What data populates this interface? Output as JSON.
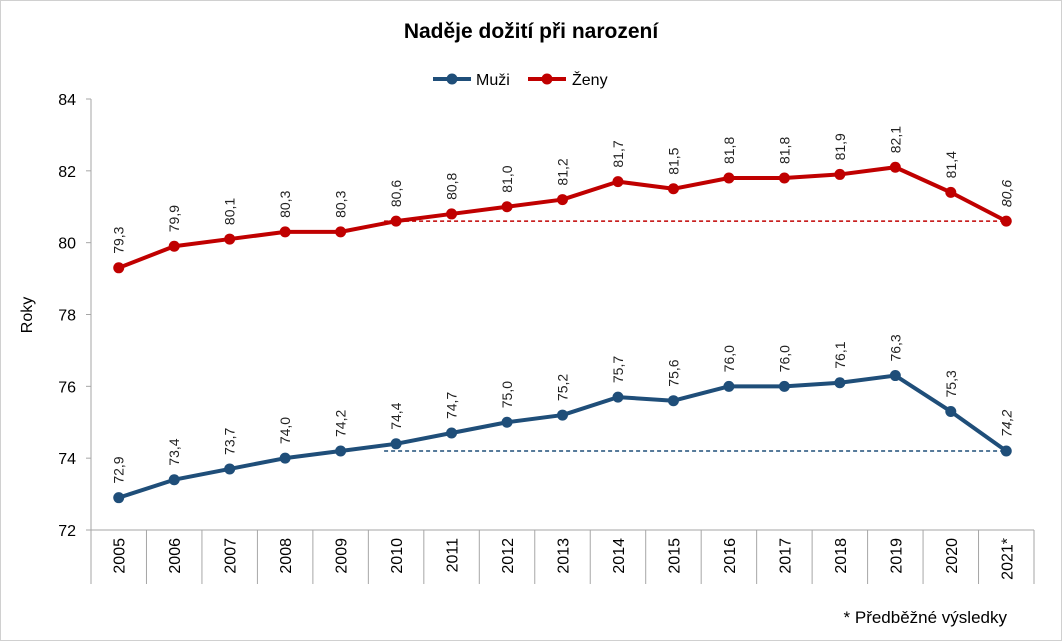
{
  "chart_data": {
    "type": "line",
    "title": "Naděje dožití při narození",
    "ylabel": "Roky",
    "xlabel": "",
    "ylim": [
      72,
      84
    ],
    "yticks": [
      72,
      74,
      76,
      78,
      80,
      82,
      84
    ],
    "grid": false,
    "legend_position": "top",
    "categories": [
      "2005",
      "2006",
      "2007",
      "2008",
      "2009",
      "2010",
      "2011",
      "2012",
      "2013",
      "2014",
      "2015",
      "2016",
      "2017",
      "2018",
      "2019",
      "2020",
      "2021*"
    ],
    "series": [
      {
        "name": "Muži",
        "color": "#1f4e79",
        "values": [
          72.9,
          73.4,
          73.7,
          74.0,
          74.2,
          74.4,
          74.7,
          75.0,
          75.2,
          75.7,
          75.6,
          76.0,
          76.0,
          76.1,
          76.3,
          75.3,
          74.2
        ],
        "labels": [
          "72,9",
          "73,4",
          "73,7",
          "74,0",
          "74,2",
          "74,4",
          "74,7",
          "75,0",
          "75,2",
          "75,7",
          "75,6",
          "76,0",
          "76,0",
          "76,1",
          "76,3",
          "75,3",
          "74,2"
        ],
        "reference_value": 74.2,
        "reference_from": "2010"
      },
      {
        "name": "Ženy",
        "color": "#c00000",
        "values": [
          79.3,
          79.9,
          80.1,
          80.3,
          80.3,
          80.6,
          80.8,
          81.0,
          81.2,
          81.7,
          81.5,
          81.8,
          81.8,
          81.9,
          82.1,
          81.4,
          80.6
        ],
        "labels": [
          "79,3",
          "79,9",
          "80,1",
          "80,3",
          "80,3",
          "80,6",
          "80,8",
          "81,0",
          "81,2",
          "81,7",
          "81,5",
          "81,8",
          "81,8",
          "81,9",
          "82,1",
          "81,4",
          "80,6"
        ],
        "reference_value": 80.6,
        "reference_from": "2010"
      }
    ],
    "footnote": "* Předběžné výsledky"
  }
}
